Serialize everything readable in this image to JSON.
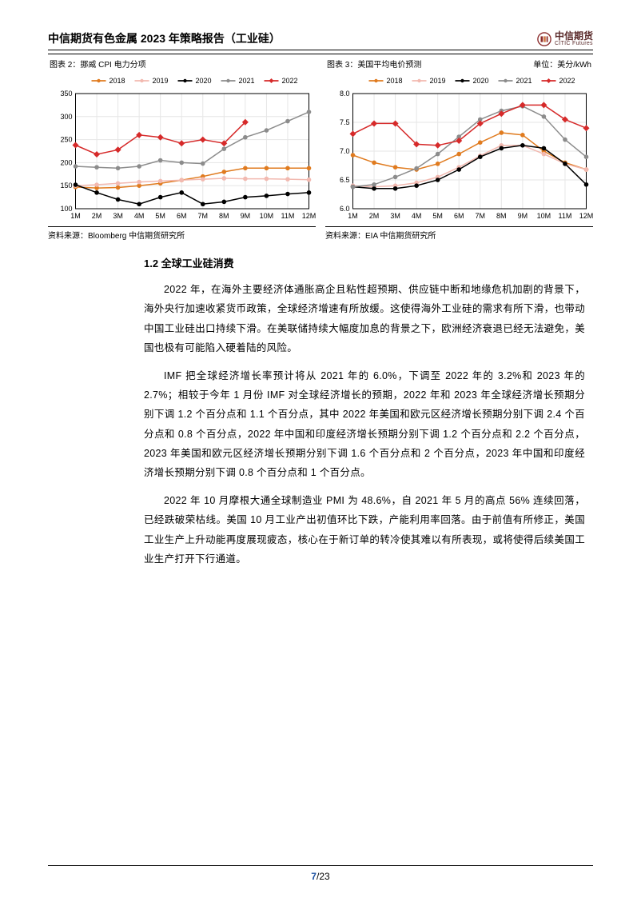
{
  "header": {
    "title": "中信期货有色金属 2023 年策略报告（工业硅）",
    "brand_cn": "中信期货",
    "brand_en": "CITIC Futures",
    "brand_color": "#8a2a2a"
  },
  "figures": {
    "left": {
      "title": "图表 2：挪威 CPI 电力分项",
      "source": "资料来源：Bloomberg 中信期货研究所"
    },
    "right": {
      "title": "图表 3：美国平均电价预测",
      "unit": "单位：美分/kWh",
      "source": "资料来源：EIA 中信期货研究所"
    },
    "legend": [
      "2018",
      "2019",
      "2020",
      "2021",
      "2022"
    ],
    "legend_colors": [
      "#e07b1f",
      "#f2b9b0",
      "#000000",
      "#8c8c8c",
      "#d62a2a"
    ],
    "chart_left": {
      "type": "line",
      "x_categories": [
        "1M",
        "2M",
        "3M",
        "4M",
        "5M",
        "6M",
        "7M",
        "8M",
        "9M",
        "10M",
        "11M",
        "12M"
      ],
      "ylim": [
        100,
        350
      ],
      "ytick_step": 50,
      "series_colors": [
        "#e07b1f",
        "#f2b9b0",
        "#000000",
        "#8c8c8c",
        "#d62a2a"
      ],
      "series_markers": [
        "circle",
        "circle",
        "circle",
        "circle",
        "diamond"
      ],
      "marker_size": 4,
      "line_width": 1.5,
      "grid_color": "#e6e6e6",
      "background_color": "#ffffff",
      "axis_color": "#000000",
      "label_fontsize": 9,
      "series": {
        "2018": [
          147,
          145,
          146,
          150,
          155,
          162,
          170,
          180,
          188,
          188,
          188,
          188
        ],
        "2019": [
          150,
          152,
          155,
          158,
          160,
          162,
          164,
          166,
          165,
          165,
          164,
          163
        ],
        "2020": [
          152,
          135,
          120,
          110,
          125,
          135,
          110,
          115,
          125,
          128,
          132,
          135
        ],
        "2021": [
          192,
          190,
          188,
          192,
          205,
          200,
          198,
          230,
          255,
          270,
          290,
          310
        ],
        "2022": [
          238,
          218,
          228,
          260,
          255,
          242,
          250,
          242,
          288,
          null,
          null,
          null
        ]
      }
    },
    "chart_right": {
      "type": "line",
      "x_categories": [
        "1M",
        "2M",
        "3M",
        "4M",
        "5M",
        "6M",
        "7M",
        "8M",
        "9M",
        "10M",
        "11M",
        "12M"
      ],
      "ylim": [
        6,
        8
      ],
      "ytick_step": 0.5,
      "series_colors": [
        "#e07b1f",
        "#f2b9b0",
        "#000000",
        "#8c8c8c",
        "#d62a2a"
      ],
      "series_markers": [
        "circle",
        "circle",
        "circle",
        "circle",
        "diamond"
      ],
      "marker_size": 4,
      "line_width": 1.5,
      "grid_color": "#e6e6e6",
      "background_color": "#ffffff",
      "axis_color": "#000000",
      "label_fontsize": 9,
      "series": {
        "2018": [
          6.93,
          6.8,
          6.72,
          6.68,
          6.78,
          6.95,
          7.15,
          7.32,
          7.28,
          7.0,
          6.8,
          6.68
        ],
        "2019": [
          6.4,
          6.38,
          6.4,
          6.45,
          6.55,
          6.72,
          6.92,
          7.1,
          7.1,
          6.95,
          6.78,
          6.68
        ],
        "2020": [
          6.38,
          6.35,
          6.35,
          6.4,
          6.5,
          6.68,
          6.9,
          7.05,
          7.1,
          7.05,
          6.78,
          6.42
        ],
        "2021": [
          6.38,
          6.42,
          6.55,
          6.7,
          6.95,
          7.25,
          7.55,
          7.7,
          7.78,
          7.6,
          7.2,
          6.9
        ],
        "2022": [
          7.3,
          7.48,
          7.48,
          7.12,
          7.1,
          7.18,
          7.48,
          7.65,
          7.8,
          7.8,
          7.55,
          7.4
        ]
      }
    }
  },
  "content": {
    "section_title": "1.2 全球工业硅消费",
    "p1": "2022 年，在海外主要经济体通胀高企且粘性超预期、供应链中断和地缘危机加剧的背景下，海外央行加速收紧货币政策，全球经济增速有所放缓。这使得海外工业硅的需求有所下滑，也带动中国工业硅出口持续下滑。在美联储持续大幅度加息的背景之下，欧洲经济衰退已经无法避免，美国也极有可能陷入硬着陆的风险。",
    "p2": "IMF 把全球经济增长率预计将从 2021 年的 6.0%，下调至 2022 年的 3.2%和 2023 年的 2.7%；相较于今年 1 月份 IMF 对全球经济增长的预期，2022 年和 2023 年全球经济增长预期分别下调 1.2 个百分点和 1.1 个百分点，其中 2022 年美国和欧元区经济增长预期分别下调 2.4 个百分点和 0.8 个百分点，2022 年中国和印度经济增长预期分别下调 1.2 个百分点和 2.2 个百分点，2023 年美国和欧元区经济增长预期分别下调 1.6 个百分点和 2 个百分点，2023 年中国和印度经济增长预期分别下调 0.8 个百分点和 1 个百分点。",
    "p3": "2022 年 10 月摩根大通全球制造业 PMI 为 48.6%，自 2021 年 5 月的高点 56% 连续回落，已经跌破荣枯线。美国 10 月工业产出初值环比下跌，产能利用率回落。由于前值有所修正，美国工业生产上升动能再度展现疲态，核心在于新订单的转冷使其难以有所表现，或将使得后续美国工业生产打开下行通道。"
  },
  "footer": {
    "page_current": "7",
    "page_sep": "/",
    "page_total": "23",
    "current_color": "#1a4fa0"
  }
}
